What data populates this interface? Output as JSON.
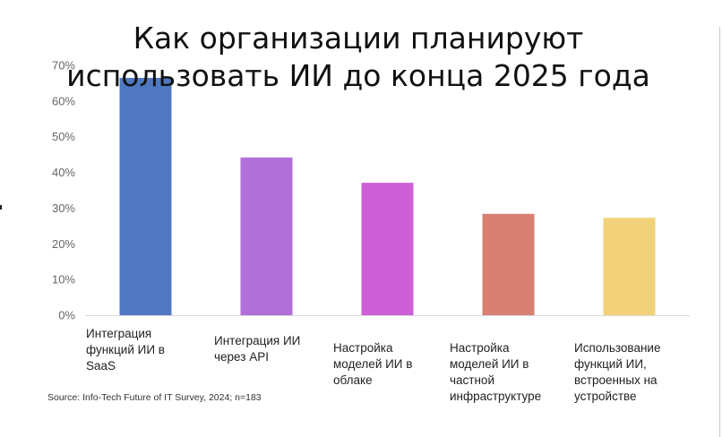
{
  "chart_data": {
    "type": "bar",
    "title": "Как организации планируют использовать ИИ до конца 2025 года",
    "categories": [
      "Интеграция функций ИИ в SaaS",
      "Интеграция ИИ через API",
      "Настройка моделей ИИ в облаке",
      "Настройка моделей ИИ в частной инфраструктуре",
      "Использование функций ИИ, встроенных на устройстве"
    ],
    "category_lines": [
      [
        "Интеграция",
        "функций ИИ в",
        "SaaS"
      ],
      [
        "Интеграция ИИ",
        "через API"
      ],
      [
        "Настройка",
        "моделей ИИ в",
        "облаке"
      ],
      [
        "Настройка",
        "моделей ИИ в",
        "частной",
        "инфраструктуре"
      ],
      [
        "Использование",
        "функций ИИ,",
        "встроенных на",
        "устройстве"
      ]
    ],
    "values": [
      66.5,
      44.2,
      37.1,
      28.4,
      27.3
    ],
    "colors": [
      "#4f78c1",
      "#b06fd9",
      "#cf5fd6",
      "#d98073",
      "#f1d27b"
    ],
    "ylim": [
      0,
      70
    ],
    "yticks": [
      "0%",
      "10%",
      "20%",
      "30%",
      "40%",
      "50%",
      "60%",
      "70%"
    ],
    "grid": false,
    "xlabel": "",
    "ylabel": "",
    "source": "Source: Info-Tech Future of IT Survey, 2024; n=183"
  }
}
